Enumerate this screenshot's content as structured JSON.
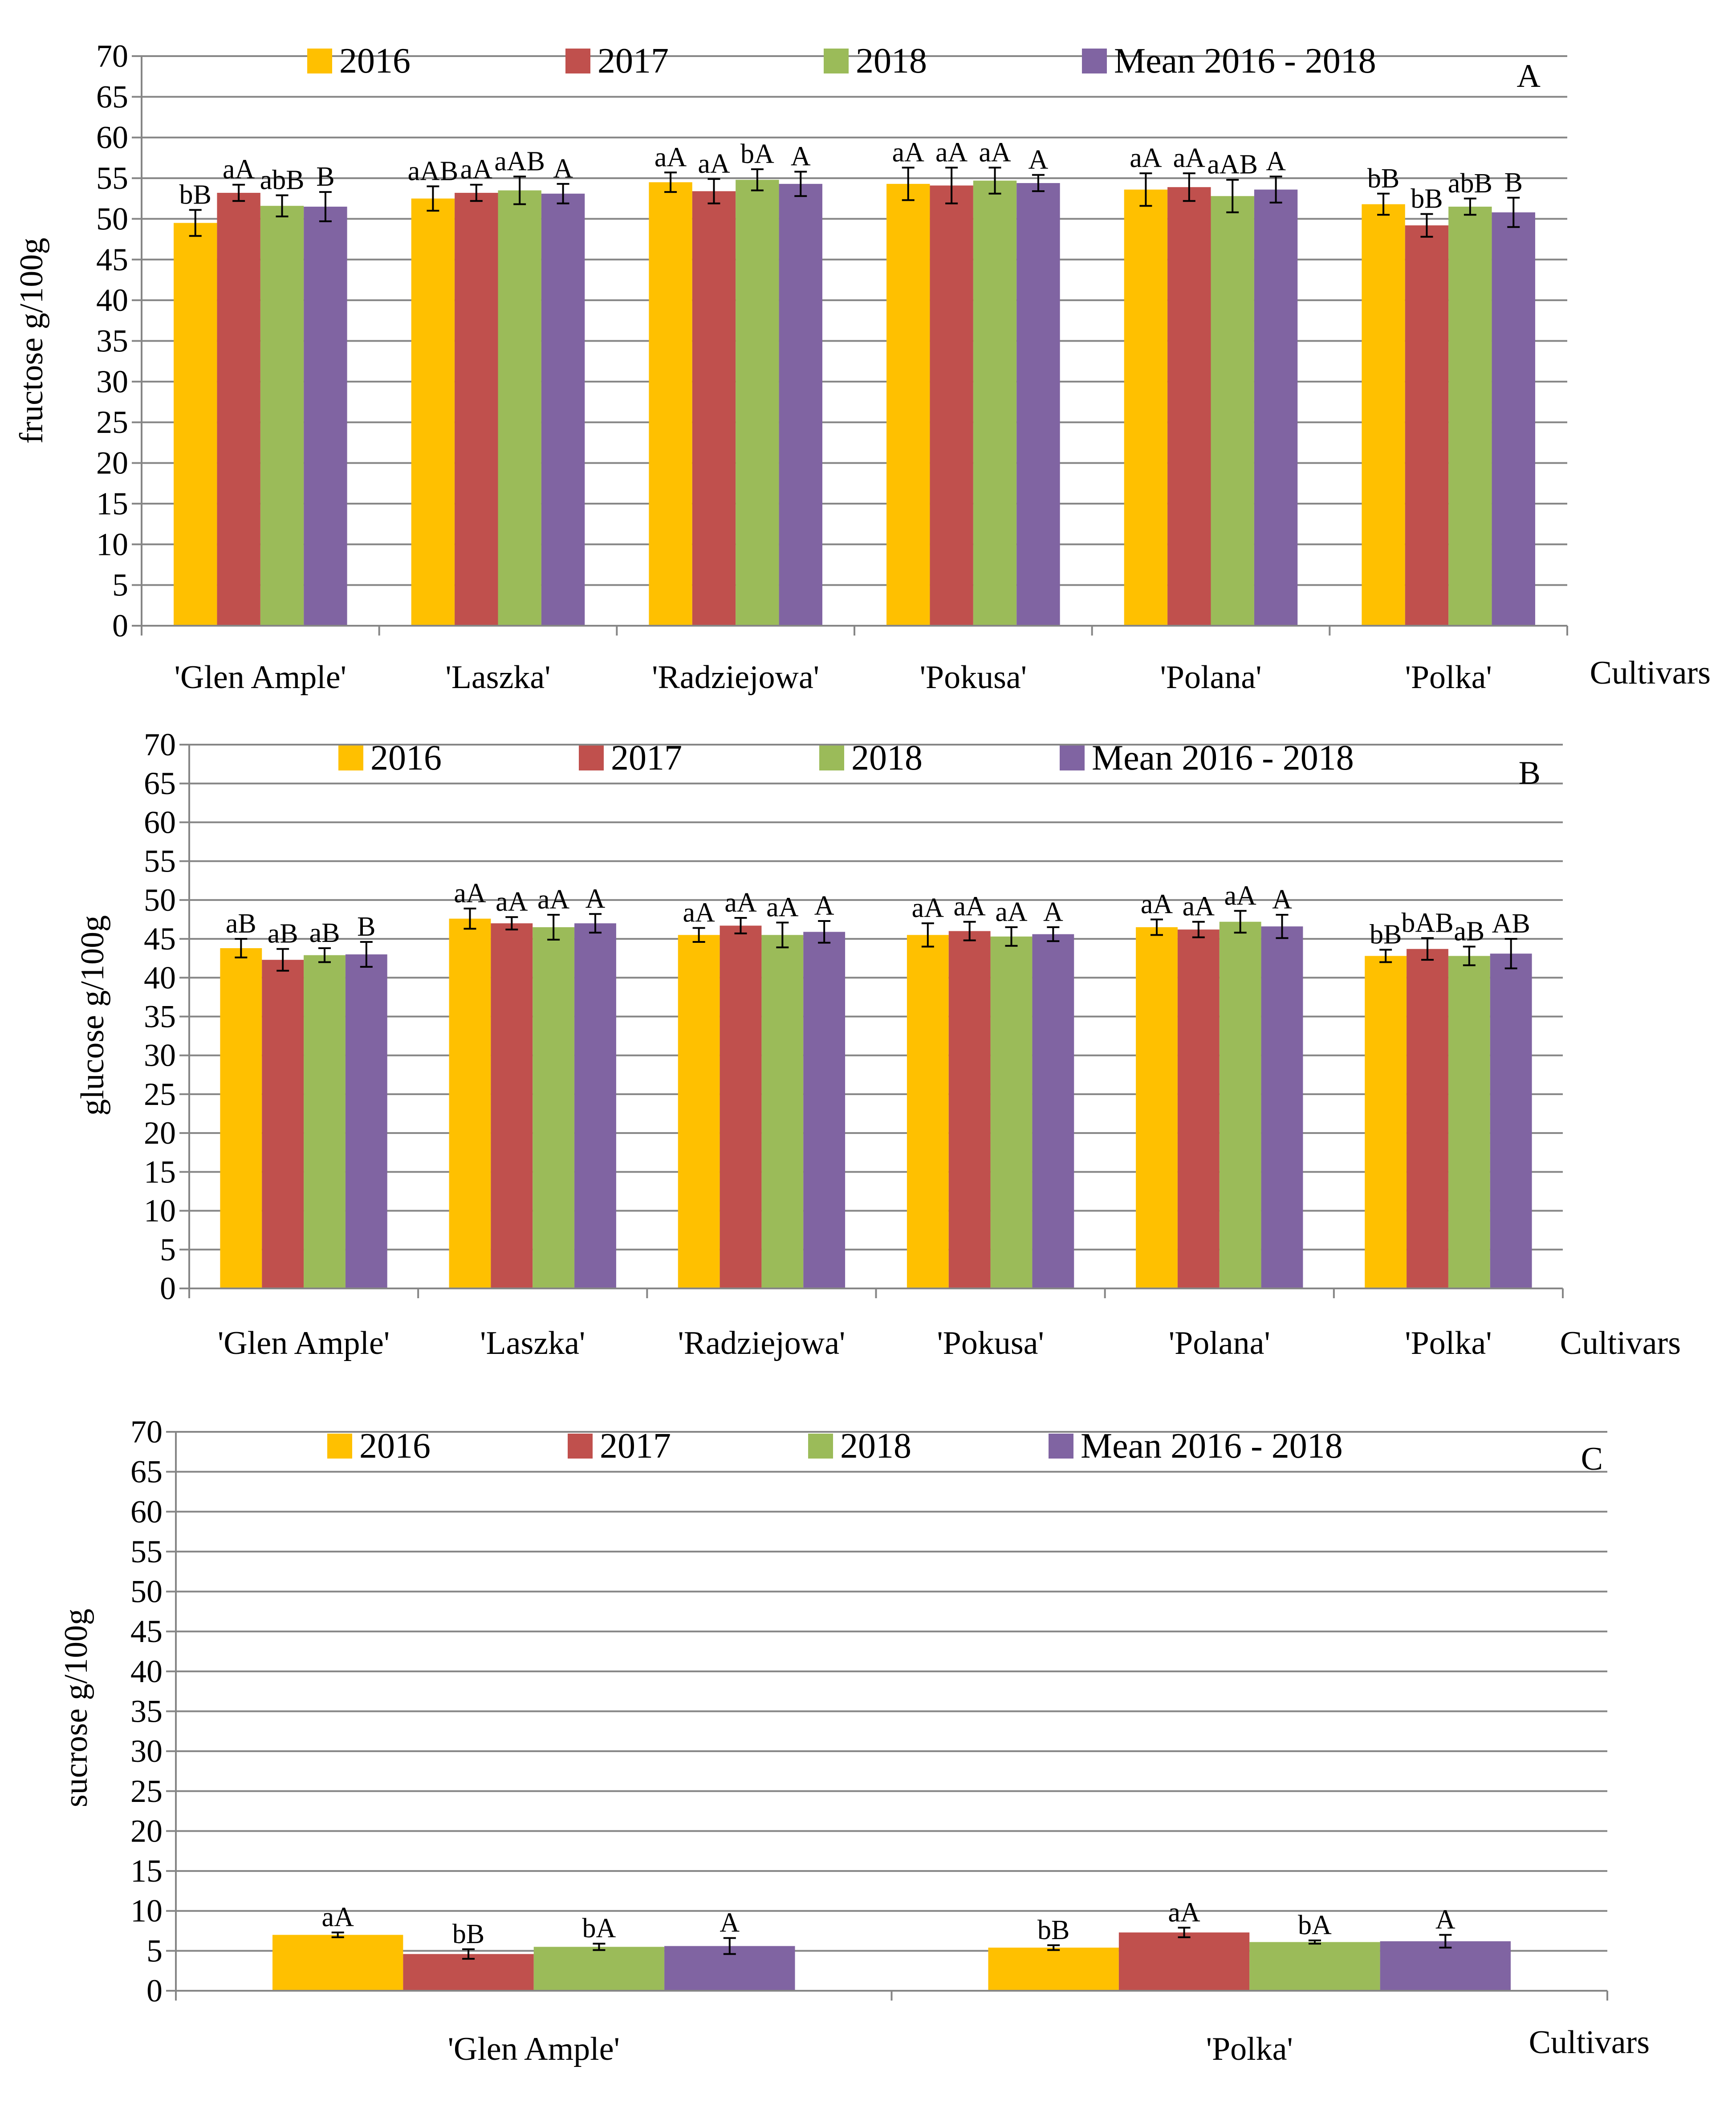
{
  "colors": {
    "2016": "#FFC000",
    "2017": "#C0504D",
    "2018": "#9BBB59",
    "mean": "#8064A2",
    "grid": "#868686",
    "axis": "#868686",
    "errorbar": "#000000"
  },
  "chart_data": [
    {
      "type": "bar",
      "panel": "A",
      "ylabel": "fructose g/100g",
      "xlabel": "Cultivars",
      "ylim": [
        0,
        70
      ],
      "ytick_step": 5,
      "grid": true,
      "legend_position": "top",
      "categories": [
        "'Glen Ample'",
        "'Laszka'",
        "'Radziejowa'",
        "'Pokusa'",
        "'Polana'",
        "'Polka'"
      ],
      "series": [
        {
          "name": "2016",
          "color_key": "2016",
          "values": [
            49.5,
            52.5,
            54.5,
            54.3,
            53.6,
            51.8
          ],
          "errors": [
            1.6,
            1.5,
            1.2,
            2.0,
            2.0,
            1.3
          ],
          "labels": [
            "bB",
            "aAB",
            "aA",
            "aA",
            "aA",
            "bB"
          ]
        },
        {
          "name": "2017",
          "color_key": "2017",
          "values": [
            53.2,
            53.2,
            53.4,
            54.1,
            53.9,
            49.2
          ],
          "errors": [
            1.0,
            1.0,
            1.5,
            2.2,
            1.7,
            1.4
          ],
          "labels": [
            "aA",
            "aA",
            "aA",
            "aA",
            "aA",
            "bB"
          ]
        },
        {
          "name": "2018",
          "color_key": "2018",
          "values": [
            51.6,
            53.5,
            54.8,
            54.7,
            52.8,
            51.5
          ],
          "errors": [
            1.3,
            1.7,
            1.3,
            1.6,
            2.0,
            1.0
          ],
          "labels": [
            "abB",
            "aAB",
            "bA",
            "aA",
            "aAB",
            "abB"
          ]
        },
        {
          "name": "Mean 2016 - 2018",
          "color_key": "mean",
          "values": [
            51.5,
            53.1,
            54.3,
            54.4,
            53.6,
            50.8
          ],
          "errors": [
            1.8,
            1.2,
            1.5,
            1.0,
            1.6,
            1.8
          ],
          "labels": [
            "B",
            "A",
            "A",
            "A",
            "A",
            "B"
          ]
        }
      ]
    },
    {
      "type": "bar",
      "panel": "B",
      "ylabel": "glucose g/100g",
      "xlabel": "Cultivars",
      "ylim": [
        0,
        70
      ],
      "ytick_step": 5,
      "grid": true,
      "legend_position": "top",
      "categories": [
        "'Glen Ample'",
        "'Laszka'",
        "'Radziejowa'",
        "'Pokusa'",
        "'Polana'",
        "'Polka'"
      ],
      "series": [
        {
          "name": "2016",
          "color_key": "2016",
          "values": [
            43.8,
            47.6,
            45.5,
            45.5,
            46.5,
            42.8
          ],
          "errors": [
            1.2,
            1.3,
            0.9,
            1.5,
            1.0,
            0.8
          ],
          "labels": [
            "aB",
            "aA",
            "aA",
            "aA",
            "aA",
            "bB"
          ]
        },
        {
          "name": "2017",
          "color_key": "2017",
          "values": [
            42.3,
            47.0,
            46.7,
            46.0,
            46.2,
            43.7
          ],
          "errors": [
            1.4,
            0.8,
            1.0,
            1.2,
            1.0,
            1.4
          ],
          "labels": [
            "aB",
            "aA",
            "aA",
            "aA",
            "aA",
            "bAB"
          ]
        },
        {
          "name": "2018",
          "color_key": "2018",
          "values": [
            42.9,
            46.5,
            45.5,
            45.3,
            47.2,
            42.8
          ],
          "errors": [
            0.9,
            1.6,
            1.6,
            1.2,
            1.4,
            1.2
          ],
          "labels": [
            "aB",
            "aA",
            "aA",
            "aA",
            "aA",
            "aB"
          ]
        },
        {
          "name": "Mean 2016 - 2018",
          "color_key": "mean",
          "values": [
            43.0,
            47.0,
            45.9,
            45.6,
            46.6,
            43.1
          ],
          "errors": [
            1.6,
            1.2,
            1.4,
            0.9,
            1.5,
            1.9
          ],
          "labels": [
            "B",
            "A",
            "A",
            "A",
            "A",
            "AB"
          ]
        }
      ]
    },
    {
      "type": "bar",
      "panel": "C",
      "ylabel": "sucrose g/100g",
      "xlabel": "Cultivars",
      "ylim": [
        0,
        70
      ],
      "ytick_step": 5,
      "grid": true,
      "legend_position": "top",
      "categories": [
        "'Glen Ample'",
        "'Polka'"
      ],
      "series": [
        {
          "name": "2016",
          "color_key": "2016",
          "values": [
            7.0,
            5.4
          ],
          "errors": [
            0.3,
            0.3
          ],
          "labels": [
            "aA",
            "bB"
          ]
        },
        {
          "name": "2017",
          "color_key": "2017",
          "values": [
            4.6,
            7.3
          ],
          "errors": [
            0.6,
            0.6
          ],
          "labels": [
            "bB",
            "aA"
          ]
        },
        {
          "name": "2018",
          "color_key": "2018",
          "values": [
            5.5,
            6.1
          ],
          "errors": [
            0.4,
            0.2
          ],
          "labels": [
            "bA",
            "bA"
          ]
        },
        {
          "name": "Mean 2016 - 2018",
          "color_key": "mean",
          "values": [
            5.6,
            6.2
          ],
          "errors": [
            1.0,
            0.8
          ],
          "labels": [
            "A",
            "A"
          ]
        }
      ]
    }
  ]
}
